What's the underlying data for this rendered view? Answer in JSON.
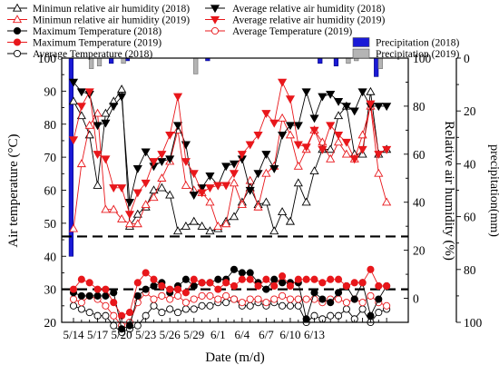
{
  "chart_data": {
    "type": "line",
    "xlabel": "Date (m/d)",
    "ylabel_left": "Air temperature (°C)",
    "ylabel_right1": "Relative air  humidity (%)",
    "ylabel_right2": "precipitation(mm)",
    "x_tick_labels": [
      "5/14",
      "5/17",
      "5/20",
      "5/23",
      "5/26",
      "5/29",
      "6/1",
      "6/4",
      "6/7",
      "6/10",
      "6/13"
    ],
    "y_left": {
      "min": 20,
      "max": 100,
      "ticks": [
        20,
        30,
        40,
        50,
        60,
        70,
        80,
        90,
        100
      ]
    },
    "y_humidity": {
      "min": -10,
      "max": 100,
      "ticks": [
        0,
        20,
        40,
        60,
        80,
        100
      ]
    },
    "y_precip": {
      "min": 0,
      "max": 100,
      "reversed": true,
      "ticks": [
        0,
        20,
        40,
        60,
        80,
        100
      ]
    },
    "reference_lines": [
      46,
      30
    ],
    "legend": [
      {
        "label": "Minimun relative air humidity (2018)",
        "color": "#000000",
        "marker": "triangle-up-open"
      },
      {
        "label": "Average relative air humidity (2018)",
        "color": "#000000",
        "marker": "triangle-down-filled"
      },
      {
        "label": "Minimun relative air humidity (2019)",
        "color": "#e8171b",
        "marker": "triangle-up-open"
      },
      {
        "label": "Average relative air humidity (2019)",
        "color": "#e8171b",
        "marker": "triangle-down-filled"
      },
      {
        "label": "Maximum Temperature (2018)",
        "color": "#000000",
        "marker": "circle-filled"
      },
      {
        "label": "Average Temperature (2018)",
        "color": "#000000",
        "marker": "circle-open"
      },
      {
        "label": "Precipitation (2018)",
        "color": "#1a1ad6",
        "marker": "bar"
      },
      {
        "label": "Maximum Temperature (2019)",
        "color": "#e8171b",
        "marker": "circle-filled"
      },
      {
        "label": "Average Temperature (2019)",
        "color": "#e8171b",
        "marker": "circle-open"
      },
      {
        "label": "Precipitation (2019)",
        "color": "#b4b4b4",
        "marker": "bar"
      }
    ],
    "x_start_day": 1,
    "series": [
      {
        "name": "Minimun relative air humidity (2018)",
        "axis": "humidity",
        "color": "#000000",
        "marker": "triangle-up-open",
        "values": [
          82,
          76,
          68,
          47,
          77,
          82,
          87,
          30,
          35,
          38,
          45,
          46,
          43,
          28,
          30,
          32,
          30,
          28,
          29,
          32,
          34,
          40,
          46,
          39,
          40,
          28,
          36,
          32,
          48,
          40,
          53,
          62,
          62,
          76,
          80,
          60,
          60,
          86,
          60,
          62
        ]
      },
      {
        "name": "Average relative air humidity (2018)",
        "axis": "humidity",
        "color": "#000000",
        "marker": "triangle-down-filled",
        "values": [
          90,
          86,
          85,
          72,
          73,
          80,
          84,
          40,
          54,
          61,
          55,
          57,
          58,
          72,
          64,
          43,
          46,
          51,
          47,
          55,
          56,
          58,
          45,
          52,
          60,
          54,
          68,
          72,
          72,
          86,
          75,
          84,
          85,
          82,
          80,
          78,
          86,
          80,
          80,
          80
        ]
      },
      {
        "name": "Minimun relative air humidity (2019)",
        "axis": "humidity",
        "color": "#e8171b",
        "marker": "triangle-up-open",
        "values": [
          29,
          56,
          72,
          77,
          37,
          37,
          33,
          31,
          31,
          39,
          42,
          50,
          57,
          70,
          47,
          45,
          44,
          40,
          30,
          31,
          48,
          39,
          49,
          38,
          52,
          55,
          75,
          68,
          55,
          62,
          70,
          65,
          58,
          65,
          60,
          58,
          68,
          80,
          52,
          40
        ]
      },
      {
        "name": "Average relative air humidity (2019)",
        "axis": "humidity",
        "color": "#e8171b",
        "marker": "triangle-down-filled",
        "values": [
          66,
          80,
          86,
          60,
          58,
          46,
          46,
          35,
          44,
          48,
          57,
          60,
          68,
          84,
          57,
          52,
          44,
          46,
          47,
          47,
          52,
          60,
          64,
          68,
          77,
          73,
          90,
          83,
          64,
          63,
          70,
          62,
          72,
          68,
          65,
          58,
          62,
          81,
          60,
          62
        ]
      },
      {
        "name": "Maximum Temperature (2018)",
        "axis": "temperature",
        "color": "#000000",
        "marker": "circle-filled",
        "values": [
          29,
          28,
          28,
          28,
          28,
          29,
          18,
          19,
          28,
          30,
          31,
          32,
          29,
          31,
          33,
          31,
          32,
          32,
          33,
          33,
          36,
          35,
          35,
          32,
          30,
          33,
          32,
          32,
          32,
          21,
          29,
          27,
          26,
          29,
          31,
          27,
          32,
          22,
          27,
          31
        ]
      },
      {
        "name": "Average Temperature (2018)",
        "axis": "temperature",
        "color": "#000000",
        "marker": "circle-open",
        "values": [
          25,
          24,
          23,
          22,
          22,
          19,
          17,
          18,
          19,
          22,
          25,
          23,
          24,
          23,
          24,
          24,
          25,
          25,
          26,
          26,
          27,
          25,
          25,
          26,
          25,
          26,
          25,
          25,
          25,
          20,
          22,
          21,
          22,
          22,
          24,
          21,
          24,
          20,
          23,
          24
        ]
      },
      {
        "name": "Maximum Temperature (2019)",
        "axis": "temperature",
        "color": "#e8171b",
        "marker": "circle-filled",
        "values": [
          30,
          33,
          32,
          30,
          30,
          26,
          22,
          23,
          32,
          35,
          33,
          31,
          30,
          30,
          29,
          33,
          32,
          32,
          30,
          32,
          31,
          33,
          33,
          31,
          33,
          31,
          34,
          31,
          33,
          33,
          33,
          32,
          33,
          33,
          31,
          32,
          32,
          36,
          31,
          31
        ]
      },
      {
        "name": "Average Temperature (2019)",
        "axis": "temperature",
        "color": "#e8171b",
        "marker": "circle-open",
        "values": [
          27,
          26,
          28,
          27,
          25,
          22,
          19,
          20,
          26,
          29,
          27,
          28,
          27,
          28,
          26,
          27,
          28,
          28,
          27,
          28,
          27,
          26,
          27,
          27,
          26,
          27,
          28,
          27,
          27,
          27,
          27,
          26,
          27,
          27,
          26,
          27,
          26,
          28,
          26,
          25
        ]
      }
    ],
    "bars": [
      {
        "name": "Precipitation (2018)",
        "axis": "precipitation",
        "color": "#1a1ad6",
        "stroke": "#000080",
        "points": [
          [
            1,
            75
          ],
          [
            6,
            2
          ],
          [
            8,
            1
          ],
          [
            18,
            1
          ],
          [
            32,
            2
          ],
          [
            34,
            3
          ],
          [
            39,
            7
          ]
        ]
      },
      {
        "name": "Precipitation (2019)",
        "axis": "precipitation",
        "color": "#b4b4b4",
        "stroke": "#6e6e6e",
        "points": [
          [
            3,
            4
          ],
          [
            4,
            3
          ],
          [
            7,
            2
          ],
          [
            16,
            6
          ],
          [
            35,
            2
          ],
          [
            36,
            1
          ],
          [
            39,
            4
          ]
        ]
      }
    ]
  }
}
